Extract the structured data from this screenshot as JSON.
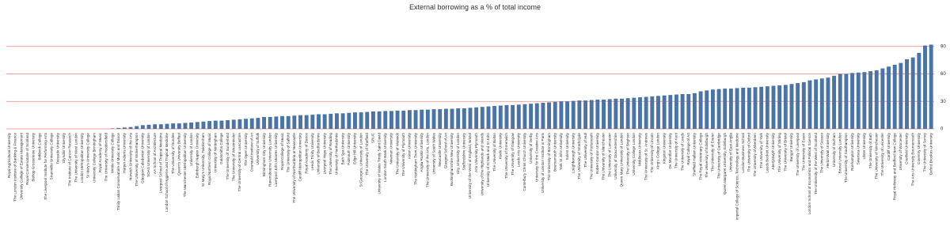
{
  "chart_data": {
    "type": "bar",
    "title": "External borrowing as a % of total income",
    "categories": [
      "Royal Agricultural University",
      "The London Institute of Banking & Finance",
      "University College of Estate Management",
      "Royal Conservatoire of Scotland",
      "Bishop Grosseteste University",
      "Birkbeck College",
      "The Liverpool Institute for Performing Arts",
      "Stranmillis University College",
      "Teesside University",
      "Glyndŵr University",
      "The Institute of Cancer Research",
      "The University of West London",
      "London Metropolitan University",
      "St Mary's University College",
      "University College Birmingham",
      "Royal Academy of Music",
      "The University of Huddersfield",
      "Writtle University College",
      "Trinity Laban Conservatoire of Music and Dance",
      "Harper Adams University",
      "Norwich University of the Arts",
      "The University of Wolverhampton",
      "Glasgow Caledonian University",
      "SOAS University of London",
      "AA School of Architecture",
      "Liverpool School of Tropical Medicine",
      "London School of Hygiene and Tropical Medicine",
      "The University of Dundee",
      "Queen's University Belfast",
      "The Manchester Metropolitan University",
      "University of London",
      "Edinburgh Napier University",
      "St Mary's University, Twickenham",
      "Royal Northern College of Music",
      "University of Nottingham",
      "Goldsmiths College",
      "The University of Sunderland",
      "The University of Westminster",
      "The University of Central Lancashire",
      "The Open University",
      "Courtauld Institute of Art",
      "University of Suffolk",
      "Birmingham City University",
      "Ravensbourne University London",
      "Liverpool John Moores University",
      "Royal College of Music",
      "The University of Salford",
      "The University of Northumbria at Newcastle",
      "Cardiff Metropolitan University",
      "Royal Academy of Dance",
      "Leeds Trinity University",
      "University of Bedfordshire",
      "Liverpool Hope University",
      "The University of Reading",
      "University of Hertfordshire",
      "Bath Spa University",
      "Falmouth University",
      "Edge Hill University",
      "St George's, University of London",
      "The University of Sheffield",
      "SRUC",
      "University of Wales Trinity Saint David",
      "London South Bank University",
      "Newman University",
      "The University of Warwick",
      "The University of Plymouth",
      "Aston University",
      "The Nottingham Trent University",
      "Anglia Ruskin University",
      "The University of the Arts, London",
      "University of South Wales",
      "Newcastle University",
      "Glasgow School of Art",
      "Buckinghamshire New University",
      "City, University of London",
      "Staffordshire University",
      "University of the West of England, Bristol",
      "Arts University Plymouth",
      "University of the Highlands and Islands",
      "University of St Mark and St John",
      "The University of Bolton",
      "Keele University",
      "The University of Greenwich",
      "The University of Glasgow",
      "Leeds Arts University",
      "Canterbury Christ Church University",
      "University of Derby",
      "University for the Creative Arts",
      "University of London Institute in Paris",
      "The University of Birmingham",
      "Bournemouth University",
      "York St John University",
      "Solent University",
      "Loughborough University",
      "The University of Strathclyde",
      "The University of Hull",
      "The University of Portsmouth",
      "Robert Gordon University",
      "The University of Manchester",
      "The University of Lancaster",
      "University of Gloucestershire",
      "Queen Mary University of London",
      "The University of Brighton",
      "University College London",
      "Middlesex University",
      "The University of St. Andrews",
      "The University of Lincoln",
      "King's College London",
      "Kingston University",
      "De Montfort University",
      "The University of Kent",
      "The University of Leeds",
      "Royal College of Art",
      "Sheffield Hallam University",
      "The Royal Veterinary College",
      "The University of Edinburgh",
      "The University of Exeter",
      "The University of Cambridge",
      "Queen Margaret University, Edinburgh",
      "University of East Anglia",
      "Imperial College of Science, Technology and Medicine",
      "London Business School",
      "The University of Oxford",
      "The University of Aberdeen",
      "The University of York",
      "Leeds Beckett University",
      "Aberystwyth University",
      "The University of Stirling",
      "The University of Bristol",
      "Bangor University",
      "The University of Liverpool",
      "The University of Essex",
      "London School of Economics and Political Science",
      "The University of the West of Scotland",
      "The University of Sussex",
      "Heriot-Watt University",
      "University of Durham",
      "Brunel University London",
      "The University of Southampton",
      "Roehampton University",
      "Swansea University",
      "Ulster University",
      "The University of Bath",
      "The University of Winchester",
      "The University of Leicester",
      "Cardiff University",
      "Royal Holloway and Bedford New College",
      "University of Worcester",
      "Cranfield University",
      "The Arts University Bournemouth",
      "Coventry University",
      "The University of Surrey",
      "Oxford Brookes University"
    ],
    "values": [
      0,
      0,
      0,
      0,
      0,
      0,
      0,
      0,
      0,
      0,
      0,
      0,
      0,
      0,
      0,
      0,
      0,
      0.5,
      1,
      1.5,
      2,
      3,
      4,
      4.5,
      5,
      5,
      5.5,
      6,
      6,
      6.5,
      7,
      7.5,
      8,
      8.5,
      9,
      9,
      9.5,
      10,
      10.5,
      11,
      11.5,
      12,
      13,
      13,
      13.5,
      14,
      14,
      14.5,
      15,
      15,
      15.5,
      16,
      16,
      16.5,
      17,
      17,
      17.5,
      18,
      18,
      18.5,
      19,
      19,
      19.5,
      19.5,
      20,
      20,
      20.5,
      20.5,
      21,
      21,
      21.5,
      21.5,
      22,
      22,
      22.5,
      22.5,
      23,
      23.5,
      24,
      24.5,
      25,
      25.5,
      26,
      26,
      26.5,
      27,
      27.5,
      28,
      28.5,
      29,
      29.5,
      30,
      30,
      30.5,
      31,
      31,
      31.5,
      32,
      32,
      32.5,
      33,
      33,
      33.5,
      34,
      34.5,
      35,
      35.5,
      36,
      36.5,
      37,
      37.5,
      38,
      38,
      39,
      41,
      42,
      43,
      43.5,
      44,
      44,
      44.5,
      45,
      45,
      45.5,
      46,
      46.5,
      47,
      47.5,
      48,
      49,
      50,
      51,
      53,
      54,
      55,
      56,
      58,
      60,
      60,
      61,
      61.5,
      62,
      63,
      64,
      66,
      68,
      70,
      72,
      76,
      78,
      83,
      91,
      92
    ],
    "color": "#4a73a8",
    "grid_color": "#f08080",
    "ylim": [
      0,
      120
    ],
    "yticks": [
      0,
      30,
      60,
      90
    ],
    "grid": true
  }
}
